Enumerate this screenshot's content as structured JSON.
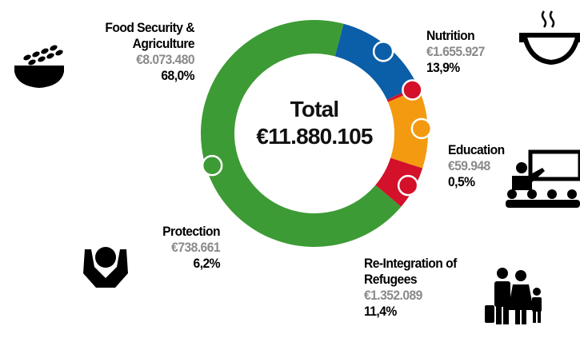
{
  "chart_data": {
    "type": "pie",
    "title": "Total",
    "total": {
      "value": 11880105,
      "label": "€11.880.105"
    },
    "categories": [
      "Food Security & Agriculture",
      "Nutrition",
      "Education",
      "Re-Integration of Refugees",
      "Protection"
    ],
    "values": [
      8073480,
      1655927,
      59948,
      1352089,
      738661
    ],
    "value_labels": [
      "€8.073.480",
      "€1.655.927",
      "€59.948",
      "€1.352.089",
      "€738.661"
    ],
    "shares": [
      68.0,
      13.9,
      0.5,
      11.4,
      6.2
    ],
    "share_labels": [
      "68,0%",
      "13,9%",
      "0,5%",
      "11,4%",
      "6,2%"
    ],
    "colors": [
      "#3d9b35",
      "#0b5ea8",
      "#d3112a",
      "#f39a10",
      "#d3112a"
    ]
  }
}
